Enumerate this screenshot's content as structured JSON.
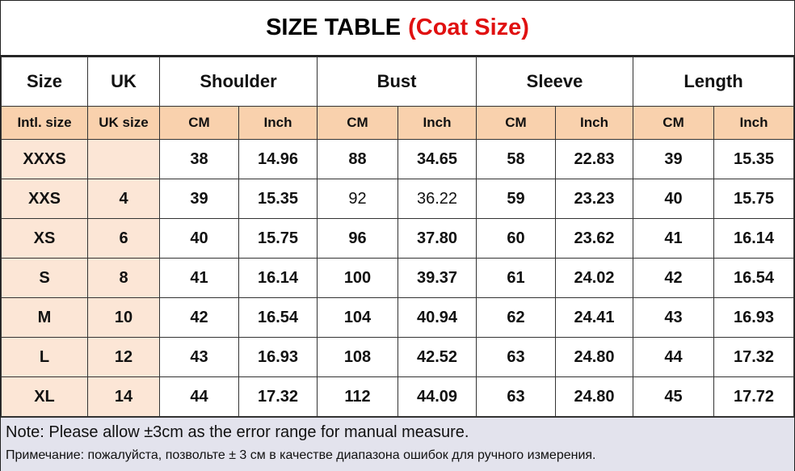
{
  "title": {
    "main": "SIZE TABLE",
    "sub": "(Coat Size)"
  },
  "colors": {
    "subheader": "#f9d1ad",
    "size_cols": "#fce6d6",
    "note_bg": "#e3e3ed",
    "title_accent": "#e01010"
  },
  "headers": [
    "Size",
    "UK",
    "Shoulder",
    "Bust",
    "Sleeve",
    "Length"
  ],
  "subheaders": [
    "Intl. size",
    "UK size",
    "CM",
    "Inch",
    "CM",
    "Inch",
    "CM",
    "Inch",
    "CM",
    "Inch"
  ],
  "rows": [
    [
      "XXXS",
      "",
      "38",
      "14.96",
      "88",
      "34.65",
      "58",
      "22.83",
      "39",
      "15.35"
    ],
    [
      "XXS",
      "4",
      "39",
      "15.35",
      "92",
      "36.22",
      "59",
      "23.23",
      "40",
      "15.75"
    ],
    [
      "XS",
      "6",
      "40",
      "15.75",
      "96",
      "37.80",
      "60",
      "23.62",
      "41",
      "16.14"
    ],
    [
      "S",
      "8",
      "41",
      "16.14",
      "100",
      "39.37",
      "61",
      "24.02",
      "42",
      "16.54"
    ],
    [
      "M",
      "10",
      "42",
      "16.54",
      "104",
      "40.94",
      "62",
      "24.41",
      "43",
      "16.93"
    ],
    [
      "L",
      "12",
      "43",
      "16.93",
      "108",
      "42.52",
      "63",
      "24.80",
      "44",
      "17.32"
    ],
    [
      "XL",
      "14",
      "44",
      "17.32",
      "112",
      "44.09",
      "63",
      "24.80",
      "45",
      "17.72"
    ]
  ],
  "note": {
    "en": "Note: Please allow ±3cm as the error range for manual measure.",
    "ru": "Примечание: пожалуйста, позвольте ± 3 см в качестве диапазона ошибок для ручного измерения."
  }
}
